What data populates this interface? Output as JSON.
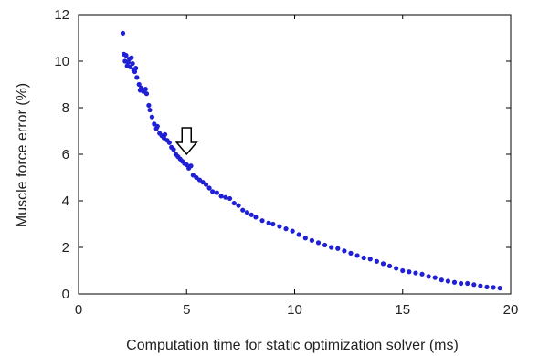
{
  "chart_data": {
    "type": "scatter",
    "xlabel": "Computation time for static optimization solver (ms)",
    "ylabel": "Muscle force error (%)",
    "xlim": [
      0,
      20
    ],
    "ylim": [
      0,
      12
    ],
    "x_ticks": [
      "0",
      "5",
      "10",
      "15",
      "20"
    ],
    "y_ticks": [
      "0",
      "2",
      "4",
      "6",
      "8",
      "10",
      "12"
    ],
    "grid": false,
    "marker_color": "#1f1fd6",
    "annotation": {
      "type": "arrow-down-outline",
      "x": 5.0,
      "y": 6.0
    },
    "series": [
      {
        "points": [
          [
            2.05,
            11.2
          ],
          [
            2.1,
            10.3
          ],
          [
            2.15,
            10.0
          ],
          [
            2.2,
            10.25
          ],
          [
            2.25,
            9.8
          ],
          [
            2.3,
            9.95
          ],
          [
            2.35,
            10.1
          ],
          [
            2.4,
            9.75
          ],
          [
            2.45,
            10.15
          ],
          [
            2.5,
            9.9
          ],
          [
            2.55,
            9.6
          ],
          [
            2.6,
            9.55
          ],
          [
            2.65,
            9.7
          ],
          [
            2.7,
            9.3
          ],
          [
            2.8,
            9.0
          ],
          [
            2.85,
            8.75
          ],
          [
            2.9,
            8.85
          ],
          [
            3.0,
            8.7
          ],
          [
            3.1,
            8.8
          ],
          [
            3.15,
            8.6
          ],
          [
            3.25,
            8.1
          ],
          [
            3.3,
            7.9
          ],
          [
            3.4,
            7.6
          ],
          [
            3.5,
            7.3
          ],
          [
            3.6,
            7.1
          ],
          [
            3.65,
            7.2
          ],
          [
            3.75,
            6.9
          ],
          [
            3.85,
            6.8
          ],
          [
            3.95,
            6.7
          ],
          [
            4.0,
            6.85
          ],
          [
            4.1,
            6.6
          ],
          [
            4.2,
            6.5
          ],
          [
            4.3,
            6.3
          ],
          [
            4.4,
            6.2
          ],
          [
            4.5,
            6.0
          ],
          [
            4.6,
            5.9
          ],
          [
            4.7,
            5.8
          ],
          [
            4.8,
            5.7
          ],
          [
            4.9,
            5.6
          ],
          [
            5.0,
            5.55
          ],
          [
            5.1,
            5.4
          ],
          [
            5.2,
            5.5
          ],
          [
            5.3,
            5.1
          ],
          [
            5.45,
            5.0
          ],
          [
            5.6,
            4.9
          ],
          [
            5.75,
            4.8
          ],
          [
            5.9,
            4.7
          ],
          [
            6.05,
            4.55
          ],
          [
            6.2,
            4.4
          ],
          [
            6.4,
            4.35
          ],
          [
            6.6,
            4.2
          ],
          [
            6.8,
            4.15
          ],
          [
            7.0,
            4.1
          ],
          [
            7.2,
            3.9
          ],
          [
            7.4,
            3.8
          ],
          [
            7.6,
            3.6
          ],
          [
            7.8,
            3.5
          ],
          [
            8.0,
            3.4
          ],
          [
            8.2,
            3.3
          ],
          [
            8.5,
            3.15
          ],
          [
            8.8,
            3.05
          ],
          [
            9.0,
            3.0
          ],
          [
            9.3,
            2.9
          ],
          [
            9.6,
            2.8
          ],
          [
            9.9,
            2.7
          ],
          [
            10.2,
            2.55
          ],
          [
            10.5,
            2.4
          ],
          [
            10.8,
            2.3
          ],
          [
            11.1,
            2.2
          ],
          [
            11.4,
            2.1
          ],
          [
            11.7,
            2.0
          ],
          [
            12.0,
            1.95
          ],
          [
            12.3,
            1.85
          ],
          [
            12.6,
            1.75
          ],
          [
            12.9,
            1.65
          ],
          [
            13.2,
            1.55
          ],
          [
            13.5,
            1.5
          ],
          [
            13.8,
            1.4
          ],
          [
            14.1,
            1.3
          ],
          [
            14.4,
            1.2
          ],
          [
            14.7,
            1.1
          ],
          [
            15.0,
            1.0
          ],
          [
            15.3,
            0.95
          ],
          [
            15.6,
            0.9
          ],
          [
            15.9,
            0.85
          ],
          [
            16.2,
            0.75
          ],
          [
            16.5,
            0.7
          ],
          [
            16.8,
            0.6
          ],
          [
            17.1,
            0.55
          ],
          [
            17.4,
            0.5
          ],
          [
            17.7,
            0.45
          ],
          [
            18.0,
            0.45
          ],
          [
            18.3,
            0.4
          ],
          [
            18.6,
            0.35
          ],
          [
            18.9,
            0.3
          ],
          [
            19.2,
            0.28
          ],
          [
            19.5,
            0.25
          ]
        ]
      }
    ]
  }
}
